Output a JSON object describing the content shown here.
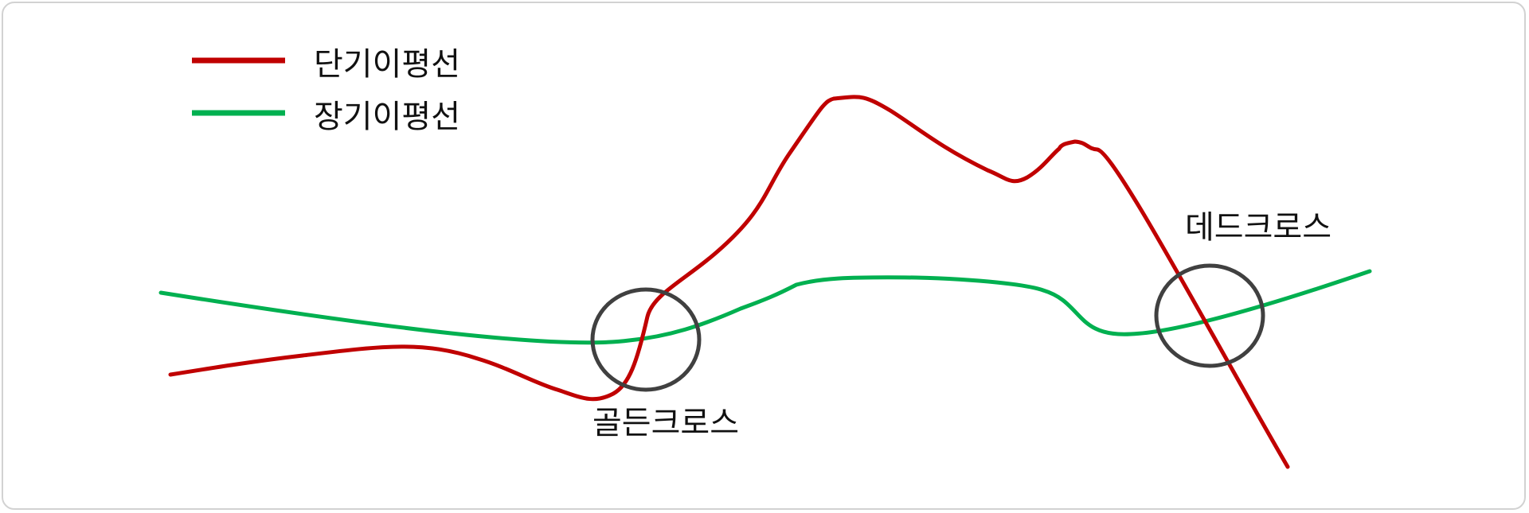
{
  "legend": {
    "short": {
      "label": "단기이평선",
      "color": "#c00000"
    },
    "long": {
      "label": "장기이평선",
      "color": "#00b050"
    }
  },
  "annotations": {
    "golden": "골든크로스",
    "dead": "데드크로스"
  },
  "colors": {
    "circle": "#404040",
    "frame": "#d2d2d2"
  }
}
